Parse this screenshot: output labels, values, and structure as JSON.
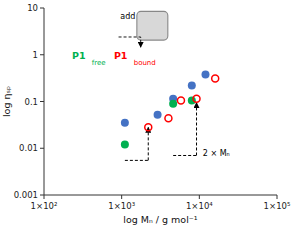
{
  "chart_data": {
    "type": "scatter",
    "xlabel": "log Mₙ / g mol⁻¹",
    "ylabel": "log ηₛₚ",
    "log": true,
    "xlim": [
      100,
      100000
    ],
    "ylim": [
      0.001,
      10
    ],
    "xticks": [
      {
        "value": 100,
        "label": "1×10²"
      },
      {
        "value": 1000,
        "label": "1×10³"
      },
      {
        "value": 10000,
        "label": "1×10⁴"
      },
      {
        "value": 100000,
        "label": "1×10⁵"
      }
    ],
    "yticks": [
      0.001,
      0.01,
      0.1,
      1,
      10
    ],
    "grid": false,
    "series": [
      {
        "color": "#4472c4",
        "marker": "circle",
        "x": [
          1100,
          2900,
          4600,
          8000,
          12000
        ],
        "values": [
          0.035,
          0.052,
          0.115,
          0.22,
          0.38
        ]
      },
      {
        "color": "#00b050",
        "marker": "circle",
        "x": [
          1100,
          4600,
          8000
        ],
        "values": [
          0.012,
          0.09,
          0.105
        ]
      },
      {
        "color": "#ff0000",
        "marker": "open_circle",
        "x": [
          2200,
          4000,
          5800,
          9200,
          16000
        ],
        "values": [
          0.028,
          0.044,
          0.105,
          0.115,
          0.31
        ]
      }
    ],
    "brackets": [
      {
        "x": [
          1100,
          2200
        ],
        "y": [
          0.0055,
          0.028
        ]
      },
      {
        "x": [
          4600,
          9200
        ],
        "y": [
          0.007,
          0.095
        ]
      }
    ],
    "annotations": [
      {
        "text": "add"
      },
      {
        "text": "P1",
        "color": "#00b050"
      },
      {
        "text": "free",
        "color": "#00b050"
      },
      {
        "text": "P1",
        "color": "#ff0000"
      },
      {
        "text": "bound",
        "color": "#ff0000"
      },
      {
        "text": "2 × Mₙ"
      }
    ]
  }
}
